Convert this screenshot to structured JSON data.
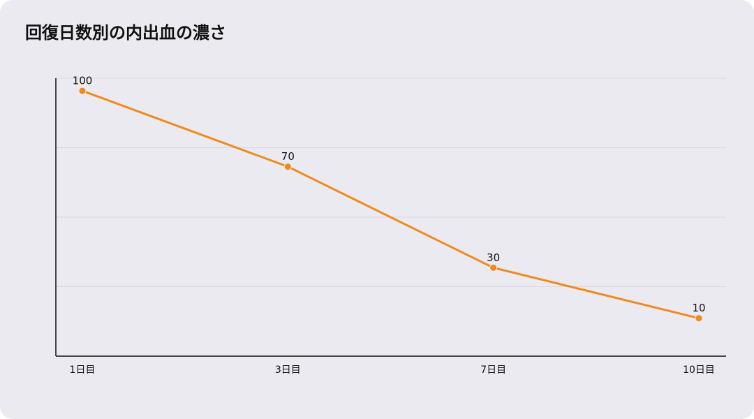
{
  "chart_data": {
    "type": "line",
    "title": "回復日数別の内出血の濃さ",
    "categories": [
      "1日目",
      "3日目",
      "7日目",
      "10日目"
    ],
    "values": [
      100,
      70,
      30,
      10
    ],
    "color": "#f08a1c",
    "ylim": [
      -5,
      105
    ],
    "yticks": [
      -5,
      22.5,
      50,
      77.5,
      105
    ],
    "grid": true
  }
}
